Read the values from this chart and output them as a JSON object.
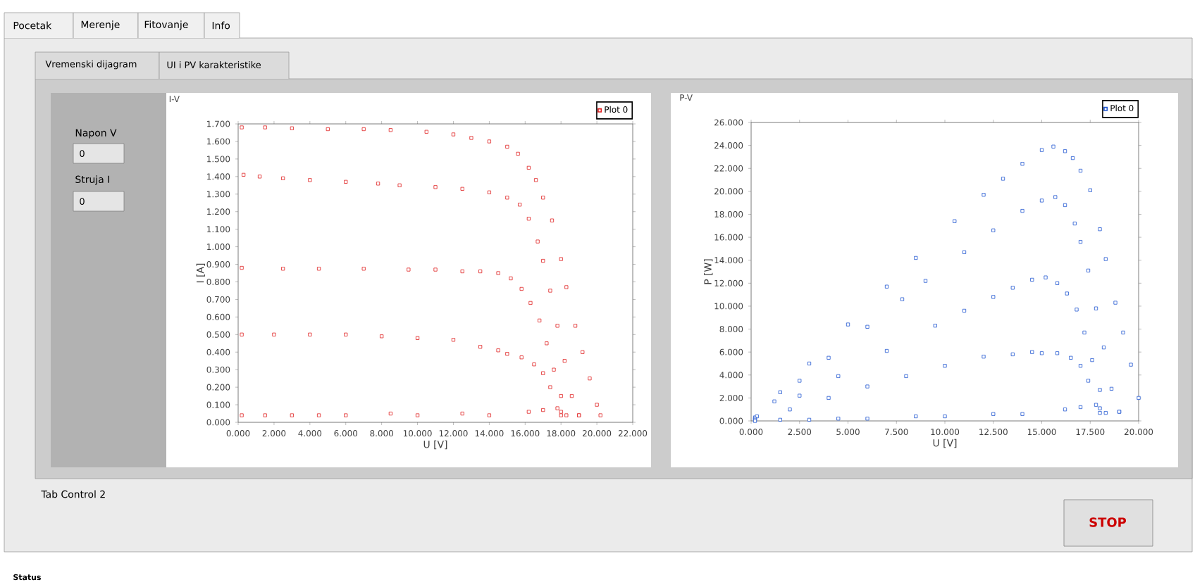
{
  "chart_data": [
    {
      "type": "scatter",
      "title": "I-V",
      "xlabel": "U [V]",
      "ylabel": "I [A]",
      "marker": "square",
      "legend": "top right",
      "xlim": [
        0,
        22
      ],
      "ylim": [
        0,
        1.7
      ],
      "xticks": [
        {
          "value": 0,
          "label": "0.000"
        },
        {
          "value": 2,
          "label": "2.000"
        },
        {
          "value": 4,
          "label": "4.000"
        },
        {
          "value": 6,
          "label": "6.000"
        },
        {
          "value": 8,
          "label": "8.000"
        },
        {
          "value": 10,
          "label": "10.000"
        },
        {
          "value": 12,
          "label": "12.000"
        },
        {
          "value": 14,
          "label": "14.000"
        },
        {
          "value": 16,
          "label": "16.000"
        },
        {
          "value": 18,
          "label": "18.000"
        },
        {
          "value": 20,
          "label": "20.000"
        },
        {
          "value": 22,
          "label": "22.000"
        }
      ],
      "yticks": [
        {
          "value": 0,
          "label": "0.000"
        },
        {
          "value": 0.1,
          "label": "0.100"
        },
        {
          "value": 0.2,
          "label": "0.200"
        },
        {
          "value": 0.3,
          "label": "0.300"
        },
        {
          "value": 0.4,
          "label": "0.400"
        },
        {
          "value": 0.5,
          "label": "0.500"
        },
        {
          "value": 0.6,
          "label": "0.600"
        },
        {
          "value": 0.7,
          "label": "0.700"
        },
        {
          "value": 0.8,
          "label": "0.800"
        },
        {
          "value": 0.9,
          "label": "0.900"
        },
        {
          "value": 1.0,
          "label": "1.000"
        },
        {
          "value": 1.1,
          "label": "1.100"
        },
        {
          "value": 1.2,
          "label": "1.200"
        },
        {
          "value": 1.3,
          "label": "1.300"
        },
        {
          "value": 1.4,
          "label": "1.400"
        },
        {
          "value": 1.5,
          "label": "1.500"
        },
        {
          "value": 1.6,
          "label": "1.600"
        },
        {
          "value": 1.7,
          "label": "1.700"
        }
      ],
      "series": [
        {
          "name": "Plot 0",
          "color": "#e02020",
          "x": [
            0.2,
            1.5,
            3,
            5,
            7,
            8.5,
            10.5,
            12,
            13,
            14,
            15,
            15.6,
            16.2,
            16.6,
            17,
            17.5,
            18,
            18.3,
            18.8,
            19.2,
            19.6,
            20,
            20.2,
            0.3,
            1.2,
            2.5,
            4,
            6,
            7.8,
            9,
            11,
            12.5,
            14,
            15,
            15.7,
            16.2,
            16.7,
            17,
            17.4,
            17.8,
            18.2,
            18.6,
            19,
            0.2,
            2.5,
            4.5,
            7,
            9.5,
            11,
            12.5,
            13.5,
            14.5,
            15.2,
            15.8,
            16.3,
            16.8,
            17.2,
            17.6,
            18,
            18.3,
            0.2,
            2,
            4,
            6,
            8,
            10,
            12,
            13.5,
            14.5,
            15,
            15.8,
            16.5,
            17,
            17.4,
            17.8,
            18,
            0.2,
            1.5,
            3,
            4.5,
            6,
            8.5,
            10,
            12.5,
            14,
            16.2,
            17,
            18,
            19
          ],
          "values": [
            1.68,
            1.68,
            1.675,
            1.67,
            1.67,
            1.665,
            1.655,
            1.64,
            1.62,
            1.6,
            1.57,
            1.53,
            1.45,
            1.38,
            1.28,
            1.15,
            0.93,
            0.77,
            0.55,
            0.4,
            0.25,
            0.1,
            0.04,
            1.41,
            1.4,
            1.39,
            1.38,
            1.37,
            1.36,
            1.35,
            1.34,
            1.33,
            1.31,
            1.28,
            1.24,
            1.16,
            1.03,
            0.92,
            0.75,
            0.55,
            0.35,
            0.15,
            0.04,
            0.88,
            0.875,
            0.875,
            0.875,
            0.87,
            0.87,
            0.86,
            0.86,
            0.85,
            0.82,
            0.76,
            0.68,
            0.58,
            0.45,
            0.3,
            0.15,
            0.04,
            0.5,
            0.5,
            0.5,
            0.5,
            0.49,
            0.48,
            0.47,
            0.43,
            0.41,
            0.39,
            0.37,
            0.33,
            0.28,
            0.2,
            0.08,
            0.04,
            0.04,
            0.04,
            0.04,
            0.04,
            0.04,
            0.05,
            0.04,
            0.05,
            0.04,
            0.06,
            0.07,
            0.06,
            0.04
          ]
        }
      ]
    },
    {
      "type": "scatter",
      "title": "P-V",
      "xlabel": "U [V]",
      "ylabel": "P [W]",
      "marker": "square",
      "legend": "top right",
      "xlim": [
        0,
        20
      ],
      "ylim": [
        0,
        26
      ],
      "xticks": [
        {
          "value": 0,
          "label": "0.000"
        },
        {
          "value": 2.5,
          "label": "2.500"
        },
        {
          "value": 5,
          "label": "5.000"
        },
        {
          "value": 7.5,
          "label": "7.500"
        },
        {
          "value": 10,
          "label": "10.000"
        },
        {
          "value": 12.5,
          "label": "12.500"
        },
        {
          "value": 15,
          "label": "15.000"
        },
        {
          "value": 17.5,
          "label": "17.500"
        },
        {
          "value": 20,
          "label": "20.000"
        }
      ],
      "yticks": [
        {
          "value": 0,
          "label": "0.000"
        },
        {
          "value": 2,
          "label": "2.000"
        },
        {
          "value": 4,
          "label": "4.000"
        },
        {
          "value": 6,
          "label": "6.000"
        },
        {
          "value": 8,
          "label": "8.000"
        },
        {
          "value": 10,
          "label": "10.000"
        },
        {
          "value": 12,
          "label": "12.000"
        },
        {
          "value": 14,
          "label": "14.000"
        },
        {
          "value": 16,
          "label": "16.000"
        },
        {
          "value": 18,
          "label": "18.000"
        },
        {
          "value": 20,
          "label": "20.000"
        },
        {
          "value": 22,
          "label": "22.000"
        },
        {
          "value": 24,
          "label": "24.000"
        },
        {
          "value": 26,
          "label": "26.000"
        }
      ],
      "series": [
        {
          "name": "Plot 0",
          "color": "#1f55d0",
          "x": [
            0.2,
            1.5,
            3,
            5,
            7,
            8.5,
            10.5,
            12,
            13,
            14,
            15,
            15.6,
            16.2,
            16.6,
            17,
            17.5,
            18,
            18.3,
            18.8,
            19.2,
            19.6,
            20,
            0.3,
            1.2,
            2.5,
            4,
            6,
            7.8,
            9,
            11,
            12.5,
            14,
            15,
            15.7,
            16.2,
            16.7,
            17,
            17.4,
            17.8,
            18.2,
            18.6,
            19,
            0.2,
            2.5,
            4.5,
            7,
            9.5,
            11,
            12.5,
            13.5,
            14.5,
            15.2,
            15.8,
            16.3,
            16.8,
            17.2,
            17.6,
            18,
            18.3,
            0.2,
            2,
            4,
            6,
            8,
            10,
            12,
            13.5,
            14.5,
            15,
            15.8,
            16.5,
            17,
            17.4,
            17.8,
            18,
            0.2,
            1.5,
            3,
            4.5,
            6,
            8.5,
            10,
            12.5,
            14,
            16.2,
            17,
            18,
            19
          ],
          "values": [
            0.3,
            2.5,
            5,
            8.4,
            11.7,
            14.2,
            17.4,
            19.7,
            21.1,
            22.4,
            23.6,
            23.9,
            23.5,
            22.9,
            21.8,
            20.1,
            16.7,
            14.1,
            10.3,
            7.7,
            4.9,
            2.0,
            0.4,
            1.7,
            3.5,
            5.5,
            8.2,
            10.6,
            12.2,
            14.7,
            16.6,
            18.3,
            19.2,
            19.5,
            18.8,
            17.2,
            15.6,
            13.1,
            9.8,
            6.4,
            2.8,
            0.8,
            0.2,
            2.2,
            3.9,
            6.1,
            8.3,
            9.6,
            10.8,
            11.6,
            12.3,
            12.5,
            12.0,
            11.1,
            9.7,
            7.7,
            5.3,
            2.7,
            0.7,
            0.1,
            1.0,
            2.0,
            3.0,
            3.9,
            4.8,
            5.6,
            5.8,
            6.0,
            5.9,
            5.9,
            5.5,
            4.8,
            3.5,
            1.4,
            0.7,
            0.0,
            0.1,
            0.1,
            0.2,
            0.2,
            0.4,
            0.4,
            0.6,
            0.6,
            1.0,
            1.2,
            1.1,
            0.8
          ]
        }
      ]
    },
    {
      "type": "other",
      "annotations": [
        "Pocetak",
        "Merenje",
        "Fitovanje",
        "Info",
        "Vremenski dijagram",
        "UI i PV karakteristike",
        "Napon V",
        "0",
        "Struja I",
        "0",
        "Tab Control 2",
        "STOP",
        "Status"
      ]
    }
  ]
}
